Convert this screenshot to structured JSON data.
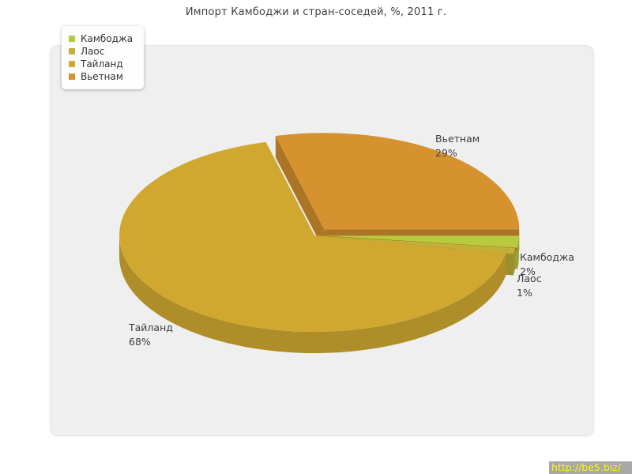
{
  "chart_data": {
    "type": "pie",
    "title": "Импорт Камбоджи и стран-соседей, %, 2011 г.",
    "unit": "%",
    "legend_position": "top-left",
    "slices": [
      {
        "name": "Камбоджа",
        "value": 2,
        "label": "Камбоджа 2%",
        "color": "#b8ca3e"
      },
      {
        "name": "Лаос",
        "value": 1,
        "label": "Лаос 1%",
        "color": "#c1b138"
      },
      {
        "name": "Тайланд",
        "value": 68,
        "label": "Тайланд 68%",
        "color": "#d0a830"
      },
      {
        "name": "Вьетнам",
        "value": 29,
        "label": "Вьетнам 29%",
        "color": "#d6922e"
      }
    ]
  },
  "watermark": {
    "text": "http://be5.biz/",
    "text_color": "#fff800",
    "bg_color": "#a8a8a8"
  }
}
